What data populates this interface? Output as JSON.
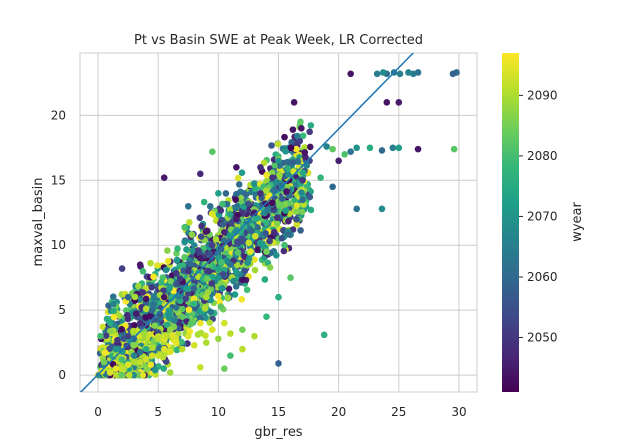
{
  "chart_data": {
    "type": "scatter",
    "title": "Pt vs Basin SWE at Peak Week, LR Corrected",
    "xlabel": "gbr_res",
    "ylabel": "maxval_basin",
    "xlim": [
      -1.5,
      31.5
    ],
    "ylim": [
      -1.3,
      24.8
    ],
    "xticks": [
      0,
      5,
      10,
      15,
      20,
      25,
      30
    ],
    "yticks": [
      0,
      5,
      10,
      15,
      20
    ],
    "grid": true,
    "fit_line": {
      "slope": 0.945,
      "intercept": 0.05,
      "color": "#1f77b4"
    },
    "colorbar": {
      "label": "wyear",
      "range": [
        2041,
        2097
      ],
      "ticks": [
        2050,
        2060,
        2070,
        2080,
        2090
      ],
      "colormap": "viridis"
    },
    "colormap_stops": [
      "#440154",
      "#482878",
      "#3e4989",
      "#31688e",
      "#26828e",
      "#1f9e89",
      "#35b779",
      "#6ece58",
      "#b5de2b",
      "#fde725"
    ],
    "points_summary": "dense cloud of ~3000 points; values below are a representative sample",
    "points": [
      [
        29.8,
        23.3,
        2060
      ],
      [
        29.5,
        23.2,
        2058
      ],
      [
        29.6,
        17.4,
        2082
      ],
      [
        26.6,
        23.3,
        2062
      ],
      [
        26.2,
        23.2,
        2064
      ],
      [
        25.8,
        23.3,
        2066
      ],
      [
        25.1,
        23.2,
        2065
      ],
      [
        24.6,
        23.3,
        2063
      ],
      [
        24.0,
        23.2,
        2061
      ],
      [
        23.7,
        23.3,
        2068
      ],
      [
        23.2,
        23.2,
        2064
      ],
      [
        25.0,
        21.0,
        2045
      ],
      [
        24.0,
        21.0,
        2044
      ],
      [
        21.0,
        23.2,
        2044
      ],
      [
        26.6,
        17.4,
        2044
      ],
      [
        24.5,
        17.5,
        2065
      ],
      [
        25.0,
        17.5,
        2072
      ],
      [
        23.6,
        17.3,
        2060
      ],
      [
        22.6,
        17.5,
        2075
      ],
      [
        21.5,
        17.5,
        2070
      ],
      [
        21.0,
        17.2,
        2062
      ],
      [
        20.5,
        17.0,
        2081
      ],
      [
        20.0,
        16.5,
        2046
      ],
      [
        19.5,
        17.4,
        2083
      ],
      [
        19.0,
        17.6,
        2066
      ],
      [
        21.5,
        12.8,
        2062
      ],
      [
        23.6,
        12.8,
        2068
      ],
      [
        18.8,
        3.1,
        2076
      ],
      [
        15.0,
        0.9,
        2058
      ],
      [
        16.2,
        18.9,
        2044
      ],
      [
        16.3,
        21.0,
        2044
      ],
      [
        16.9,
        19.0,
        2044
      ],
      [
        14.5,
        15.2,
        2050
      ],
      [
        13.5,
        14.0,
        2048
      ],
      [
        12.5,
        13.2,
        2055
      ],
      [
        11.5,
        12.0,
        2045
      ],
      [
        10.5,
        11.0,
        2047
      ],
      [
        9.5,
        10.0,
        2052
      ],
      [
        8.5,
        9.0,
        2045
      ],
      [
        7.5,
        8.0,
        2050
      ],
      [
        6.5,
        7.0,
        2056
      ],
      [
        5.5,
        6.0,
        2044
      ],
      [
        4.5,
        5.0,
        2060
      ],
      [
        3.5,
        4.0,
        2048
      ],
      [
        2.5,
        3.0,
        2052
      ],
      [
        1.5,
        2.0,
        2070
      ],
      [
        0.5,
        1.0,
        2085
      ],
      [
        0.3,
        0.3,
        2093
      ],
      [
        1.0,
        0.2,
        2094
      ],
      [
        2.0,
        0.5,
        2092
      ],
      [
        3.0,
        1.0,
        2090
      ],
      [
        4.0,
        1.2,
        2093
      ],
      [
        5.0,
        1.5,
        2092
      ],
      [
        6.0,
        1.8,
        2094
      ],
      [
        7.0,
        2.0,
        2091
      ],
      [
        8.0,
        2.3,
        2093
      ],
      [
        9.0,
        2.5,
        2090
      ],
      [
        10.0,
        2.8,
        2088
      ],
      [
        11.0,
        3.2,
        2091
      ],
      [
        12.0,
        3.5,
        2085
      ],
      [
        10.5,
        0.5,
        2084
      ],
      [
        6.0,
        0.2,
        2089
      ],
      [
        8.5,
        0.6,
        2092
      ],
      [
        16.5,
        12.0,
        2055
      ],
      [
        17.0,
        13.5,
        2060
      ],
      [
        15.5,
        10.0,
        2080
      ],
      [
        14.0,
        9.5,
        2085
      ],
      [
        13.0,
        12.5,
        2045
      ],
      [
        12.0,
        10.5,
        2055
      ],
      [
        11.0,
        8.5,
        2063
      ],
      [
        10.0,
        7.5,
        2070
      ],
      [
        9.0,
        6.0,
        2090
      ],
      [
        8.0,
        5.5,
        2078
      ],
      [
        7.0,
        4.5,
        2083
      ],
      [
        6.0,
        3.5,
        2088
      ],
      [
        5.0,
        2.8,
        2091
      ],
      [
        4.0,
        2.0,
        2075
      ],
      [
        3.0,
        1.5,
        2066
      ],
      [
        2.0,
        1.2,
        2080
      ],
      [
        5.5,
        15.2,
        2045
      ],
      [
        8.5,
        15.5,
        2047
      ],
      [
        7.5,
        13.0,
        2062
      ],
      [
        3.5,
        8.5,
        2045
      ],
      [
        2.0,
        8.2,
        2052
      ],
      [
        2.5,
        6.0,
        2060
      ],
      [
        1.0,
        4.0,
        2075
      ],
      [
        0.2,
        3.0,
        2080
      ],
      [
        9.5,
        17.2,
        2082
      ],
      [
        10.0,
        14.0,
        2072
      ],
      [
        11.5,
        16.0,
        2044
      ],
      [
        13.5,
        16.0,
        2048
      ],
      [
        15.0,
        16.5,
        2070
      ],
      [
        17.0,
        15.0,
        2050
      ],
      [
        18.5,
        15.2,
        2078
      ],
      [
        19.5,
        14.5,
        2060
      ],
      [
        16.0,
        7.5,
        2082
      ],
      [
        15.0,
        6.0,
        2076
      ],
      [
        14.0,
        4.5,
        2078
      ],
      [
        13.0,
        3.0,
        2090
      ],
      [
        12.0,
        2.0,
        2091
      ],
      [
        11.0,
        1.5,
        2080
      ],
      [
        10.5,
        4.0,
        2093
      ],
      [
        9.5,
        3.5,
        2094
      ],
      [
        8.5,
        4.0,
        2095
      ],
      [
        7.5,
        3.0,
        2094
      ],
      [
        6.5,
        2.5,
        2095
      ],
      [
        5.5,
        2.0,
        2094
      ],
      [
        4.5,
        1.5,
        2093
      ],
      [
        3.5,
        1.0,
        2092
      ],
      [
        2.5,
        0.8,
        2094
      ],
      [
        1.5,
        0.5,
        2095
      ]
    ]
  }
}
